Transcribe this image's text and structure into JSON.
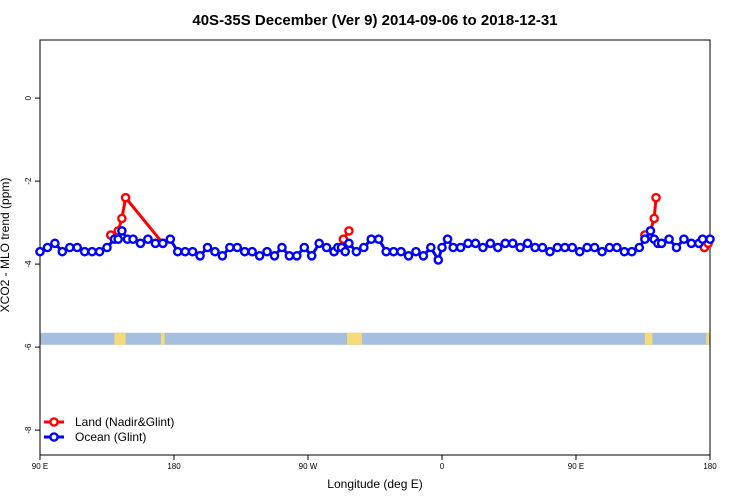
{
  "chart_data": {
    "type": "line",
    "title": "40S-35S December (Ver 9)   2014-09-06 to 2018-12-31",
    "xlabel": "Longitude (deg E)",
    "ylabel": "XCO2 - MLO trend (ppm)",
    "xlim": [
      90,
      450
    ],
    "ylim": [
      -8.6,
      1.4
    ],
    "x_ticks": [
      {
        "value": 90,
        "label": "90 E"
      },
      {
        "value": 162,
        "label": "180"
      },
      {
        "value": 234,
        "label": "90 W"
      },
      {
        "value": 306,
        "label": "0"
      },
      {
        "value": 378,
        "label": "90 E"
      },
      {
        "value": 450,
        "label": "180"
      }
    ],
    "y_ticks": [
      {
        "value": 0,
        "label": "0"
      },
      {
        "value": -2,
        "label": "-2"
      },
      {
        "value": -4,
        "label": "-4"
      },
      {
        "value": -6,
        "label": "-6"
      },
      {
        "value": -8,
        "label": "-8"
      }
    ],
    "grid": false,
    "legend_position": "bottom-left",
    "series": [
      {
        "name": "Land (Nadir&Glint)",
        "color": "#ff0000",
        "segments": [
          {
            "x": [
              128,
              132,
              134,
              136,
              156
            ],
            "y": [
              -3.3,
              -3.2,
              -2.9,
              -2.4,
              -3.5
            ]
          },
          {
            "x": [
              248,
              251,
              253,
              256
            ],
            "y": [
              -3.7,
              -3.6,
              -3.4,
              -3.2
            ]
          },
          {
            "x": [
              415,
              418,
              420,
              421
            ],
            "y": [
              -3.3,
              -3.2,
              -2.9,
              -2.4
            ]
          },
          {
            "x": [
              447,
              449
            ],
            "y": [
              -3.6,
              -3.5
            ]
          }
        ]
      },
      {
        "name": "Ocean (Glint)",
        "color": "#0000ff",
        "segments": [
          {
            "x": [
              90,
              94,
              98,
              102,
              106,
              110,
              114,
              118,
              122,
              126,
              130,
              132,
              134,
              137,
              140,
              144,
              148,
              152,
              156,
              160,
              164,
              168,
              172,
              176,
              180,
              184,
              188,
              192,
              196,
              200,
              204,
              208,
              212,
              216,
              220,
              224,
              228,
              232,
              236,
              240,
              244,
              248,
              250,
              252,
              254,
              256,
              260,
              264,
              268,
              272,
              276,
              280,
              284,
              288,
              292,
              296,
              300,
              304,
              306,
              309,
              312,
              316,
              320,
              324,
              328,
              332,
              336,
              340,
              344,
              348,
              352,
              356,
              360,
              364,
              368,
              372,
              376,
              380,
              384,
              388,
              392,
              396,
              400,
              404,
              408,
              412,
              415,
              418,
              420,
              422,
              424,
              428,
              432,
              436,
              440,
              444,
              446,
              450
            ],
            "y": [
              -3.7,
              -3.6,
              -3.5,
              -3.7,
              -3.6,
              -3.6,
              -3.7,
              -3.7,
              -3.7,
              -3.6,
              -3.4,
              -3.4,
              -3.2,
              -3.4,
              -3.4,
              -3.5,
              -3.4,
              -3.5,
              -3.5,
              -3.4,
              -3.7,
              -3.7,
              -3.7,
              -3.8,
              -3.6,
              -3.7,
              -3.8,
              -3.6,
              -3.6,
              -3.7,
              -3.7,
              -3.8,
              -3.7,
              -3.8,
              -3.6,
              -3.8,
              -3.8,
              -3.6,
              -3.8,
              -3.5,
              -3.6,
              -3.7,
              -3.6,
              -3.6,
              -3.7,
              -3.5,
              -3.7,
              -3.6,
              -3.4,
              -3.4,
              -3.7,
              -3.7,
              -3.7,
              -3.8,
              -3.7,
              -3.8,
              -3.6,
              -3.9,
              -3.6,
              -3.4,
              -3.6,
              -3.6,
              -3.5,
              -3.5,
              -3.6,
              -3.5,
              -3.6,
              -3.5,
              -3.5,
              -3.6,
              -3.5,
              -3.6,
              -3.6,
              -3.7,
              -3.6,
              -3.6,
              -3.6,
              -3.7,
              -3.6,
              -3.6,
              -3.7,
              -3.6,
              -3.6,
              -3.7,
              -3.7,
              -3.6,
              -3.4,
              -3.2,
              -3.4,
              -3.5,
              -3.5,
              -3.4,
              -3.6,
              -3.4,
              -3.5,
              -3.5,
              -3.4,
              -3.4
            ]
          }
        ]
      }
    ],
    "land_strip": {
      "y": -5.8,
      "band_color": "#a7bfdf",
      "land_color": "#f6d97a",
      "land_ranges": [
        [
          130,
          136
        ],
        [
          155,
          157
        ],
        [
          255,
          263
        ],
        [
          415,
          419
        ],
        [
          448,
          450
        ]
      ]
    }
  }
}
